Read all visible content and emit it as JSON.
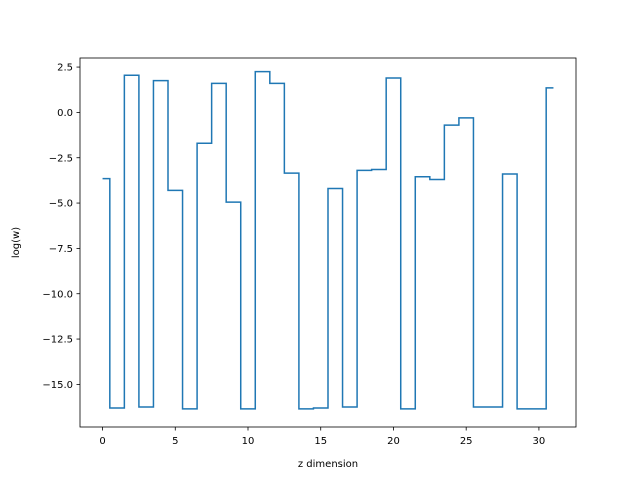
{
  "chart_data": {
    "type": "line",
    "step": "post",
    "title": "",
    "xlabel": "z dimension",
    "ylabel": "log(w)",
    "xlim": [
      -1.55,
      32.55
    ],
    "ylim": [
      -17.35,
      3.0
    ],
    "xticks": [
      0,
      5,
      10,
      15,
      20,
      25,
      30
    ],
    "xtick_labels": [
      "0",
      "5",
      "10",
      "15",
      "20",
      "25",
      "30"
    ],
    "yticks": [
      2.5,
      0.0,
      -2.5,
      -5.0,
      -7.5,
      -10.0,
      -12.5,
      -15.0
    ],
    "ytick_labels": [
      "2.5",
      "0.0",
      "−2.5",
      "−5.0",
      "−7.5",
      "−10.0",
      "−12.5",
      "−15.0"
    ],
    "grid": false,
    "series": [
      {
        "color": "#1f77b4",
        "x": [
          0,
          0.5,
          1.5,
          2.5,
          3.5,
          4.5,
          5.5,
          6.5,
          7.5,
          8.5,
          9.5,
          10.5,
          11.5,
          12.5,
          13.5,
          14.5,
          15.5,
          16.5,
          17.5,
          18.5,
          19.5,
          20.5,
          21.5,
          22.5,
          23.5,
          24.5,
          25.5,
          26.5,
          27.5,
          28.5,
          29.5,
          30.5,
          31
        ],
        "y": [
          -3.65,
          -16.3,
          2.05,
          -16.25,
          1.75,
          -4.3,
          -16.35,
          -1.7,
          1.6,
          -4.95,
          -16.35,
          2.25,
          1.6,
          -3.35,
          -16.35,
          -16.3,
          -4.2,
          -16.25,
          -3.2,
          -3.15,
          1.9,
          -16.35,
          -3.55,
          -3.7,
          -0.7,
          -0.3,
          -16.25,
          -16.25,
          -3.4,
          -16.35,
          -16.35,
          1.35,
          1.35
        ]
      }
    ]
  }
}
